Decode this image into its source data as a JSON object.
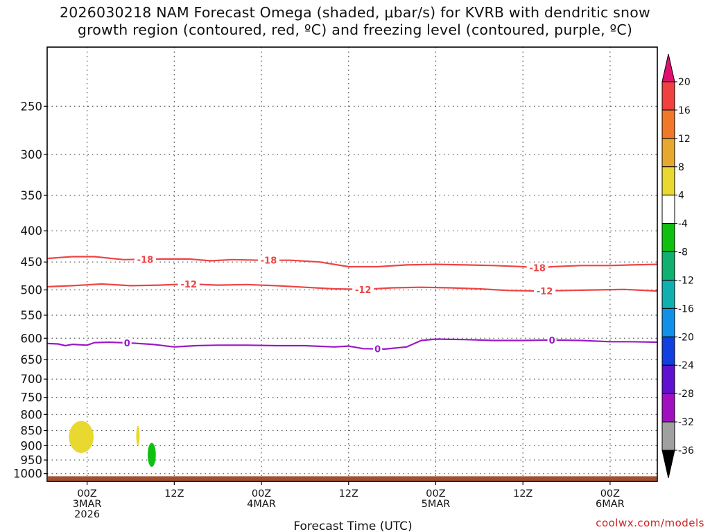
{
  "title": {
    "line1": "2026030218 NAM Forecast Omega (shaded, μbar/s) for KVRB with dendritic snow",
    "line2": "growth region (contoured, red, ºC) and freezing level (contoured, purple, ºC)"
  },
  "credit": "coolwx.com/models",
  "chart_data": {
    "type": "time-height cross section",
    "title": "2026030218 NAM Forecast Omega (shaded, μbar/s) for KVRB with dendritic snow growth region (contoured, red, ºC) and freezing level (contoured, purple, ºC)",
    "xlabel": "Forecast Time (UTC)",
    "ylabel": "",
    "x_range_hours": [
      -5.5,
      78.5
    ],
    "y_range_hpa": [
      1030,
      200
    ],
    "x_ticks": [
      {
        "hour": 0,
        "lines": [
          "00Z",
          "3MAR",
          "2026"
        ]
      },
      {
        "hour": 12,
        "lines": [
          "12Z"
        ]
      },
      {
        "hour": 24,
        "lines": [
          "00Z",
          "4MAR"
        ]
      },
      {
        "hour": 36,
        "lines": [
          "12Z"
        ]
      },
      {
        "hour": 48,
        "lines": [
          "00Z",
          "5MAR"
        ]
      },
      {
        "hour": 60,
        "lines": [
          "12Z"
        ]
      },
      {
        "hour": 72,
        "lines": [
          "00Z",
          "6MAR"
        ]
      }
    ],
    "y_ticks": [
      250,
      300,
      350,
      400,
      450,
      500,
      550,
      600,
      650,
      700,
      750,
      800,
      850,
      900,
      950,
      1000
    ],
    "grid": true,
    "colorbar": {
      "ticks": [
        "20",
        "16",
        "12",
        "8",
        "4",
        "-4",
        "-8",
        "-12",
        "-16",
        "-20",
        "-24",
        "-28",
        "-32",
        "-36"
      ],
      "bins": [
        {
          "from": 16,
          "to": 20,
          "color": "#f04040"
        },
        {
          "from": 12,
          "to": 16,
          "color": "#f07828"
        },
        {
          "from": 8,
          "to": 12,
          "color": "#e8a830"
        },
        {
          "from": 4,
          "to": 8,
          "color": "#e8d830"
        },
        {
          "from": -4,
          "to": 4,
          "color": "#ffffff"
        },
        {
          "from": -8,
          "to": -4,
          "color": "#10c010"
        },
        {
          "from": -12,
          "to": -8,
          "color": "#10b070"
        },
        {
          "from": -16,
          "to": -12,
          "color": "#10b0b0"
        },
        {
          "from": -20,
          "to": -16,
          "color": "#1090e8"
        },
        {
          "from": -24,
          "to": -20,
          "color": "#1040e0"
        },
        {
          "from": -28,
          "to": -24,
          "color": "#6010d0"
        },
        {
          "from": -32,
          "to": -28,
          "color": "#a010c0"
        },
        {
          "from": -36,
          "to": -32,
          "color": "#a0a0a0"
        }
      ],
      "over_color": "#e01070",
      "under_color": "#000000"
    },
    "contours": [
      {
        "name": "-18 C isotherm",
        "label": "-18",
        "color": "#ee4444",
        "label_hours": [
          8,
          25,
          62
        ],
        "points": [
          [
            -5.5,
            444
          ],
          [
            -2,
            441
          ],
          [
            1,
            441
          ],
          [
            5,
            446
          ],
          [
            10,
            445
          ],
          [
            14,
            445
          ],
          [
            17,
            448
          ],
          [
            20,
            446
          ],
          [
            24,
            447
          ],
          [
            28,
            447
          ],
          [
            32,
            450
          ],
          [
            36,
            458
          ],
          [
            40,
            458
          ],
          [
            44,
            455
          ],
          [
            48,
            454
          ],
          [
            52,
            455
          ],
          [
            56,
            456
          ],
          [
            60,
            458
          ],
          [
            62,
            460
          ],
          [
            64,
            458
          ],
          [
            68,
            456
          ],
          [
            72,
            456
          ],
          [
            75,
            455
          ],
          [
            78.5,
            454
          ]
        ]
      },
      {
        "name": "-12 C isotherm",
        "label": "-12",
        "color": "#ee4444",
        "label_hours": [
          14,
          38,
          63
        ],
        "points": [
          [
            -5.5,
            494
          ],
          [
            -2,
            492
          ],
          [
            2,
            489
          ],
          [
            6,
            492
          ],
          [
            10,
            491
          ],
          [
            14,
            489
          ],
          [
            18,
            491
          ],
          [
            22,
            490
          ],
          [
            26,
            492
          ],
          [
            30,
            495
          ],
          [
            34,
            498
          ],
          [
            38,
            499
          ],
          [
            42,
            496
          ],
          [
            46,
            495
          ],
          [
            50,
            496
          ],
          [
            54,
            498
          ],
          [
            58,
            501
          ],
          [
            62,
            502
          ],
          [
            66,
            501
          ],
          [
            70,
            500
          ],
          [
            74,
            499
          ],
          [
            78.5,
            502
          ]
        ]
      },
      {
        "name": "freezing level",
        "label": "0",
        "color": "#9a18c8",
        "label_hours": [
          5.5,
          40,
          64
        ],
        "points": [
          [
            -5.5,
            612
          ],
          [
            -4,
            613
          ],
          [
            -3,
            617
          ],
          [
            -2,
            614
          ],
          [
            0,
            616
          ],
          [
            1,
            610
          ],
          [
            3,
            609
          ],
          [
            6,
            611
          ],
          [
            9,
            614
          ],
          [
            12,
            620
          ],
          [
            15,
            617
          ],
          [
            18,
            616
          ],
          [
            22,
            616
          ],
          [
            26,
            617
          ],
          [
            30,
            617
          ],
          [
            34,
            620
          ],
          [
            36,
            618
          ],
          [
            38,
            624
          ],
          [
            41,
            625
          ],
          [
            44,
            620
          ],
          [
            46,
            605
          ],
          [
            48,
            602
          ],
          [
            52,
            603
          ],
          [
            56,
            605
          ],
          [
            60,
            605
          ],
          [
            64,
            604
          ],
          [
            68,
            605
          ],
          [
            72,
            608
          ],
          [
            75,
            608
          ],
          [
            78.5,
            609
          ]
        ]
      }
    ],
    "shaded_regions": [
      {
        "name": "omega 4 to 8 cell",
        "value_range": [
          4,
          8
        ],
        "color": "#e8d830",
        "center_hour": -0.8,
        "pressure_range": [
          820,
          925
        ]
      },
      {
        "name": "omega 4 to 8 sliver",
        "value_range": [
          4,
          8
        ],
        "color": "#e8d830",
        "center_hour": 7.0,
        "pressure_range": [
          835,
          900
        ]
      },
      {
        "name": "omega -8 to -4 cell",
        "value_range": [
          -8,
          -4
        ],
        "color": "#10c010",
        "center_hour": 8.9,
        "pressure_range": [
          890,
          975
        ]
      }
    ],
    "terrain": {
      "color": "#a05030",
      "pressure_range": [
        1010,
        1030
      ]
    }
  }
}
